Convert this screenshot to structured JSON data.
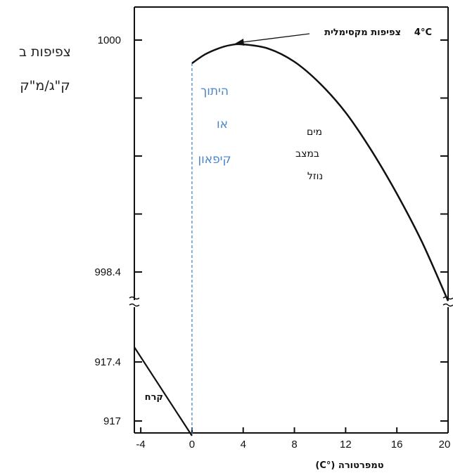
{
  "chart_data": {
    "type": "line",
    "title": "",
    "ylabel_lines": [
      "צפיפות ב",
      "ק\"ג/מ\"ק"
    ],
    "xlabel": "טמפרטורה (°C)",
    "x_ticks": [
      "-4",
      "0",
      "4",
      "8",
      "12",
      "16",
      "20"
    ],
    "y_ticks": [
      "1000",
      "998.4",
      "917.4",
      "917"
    ],
    "axis_break": "between 998.4 and 917.4",
    "xlim": [
      -4.5,
      20
    ],
    "series": [
      {
        "segment": "ice",
        "points": [
          [
            -4.5,
            917.5
          ],
          [
            0,
            916.9
          ]
        ]
      },
      {
        "segment": "water",
        "points": [
          [
            0,
            999.84
          ],
          [
            1,
            999.9
          ],
          [
            2,
            999.94
          ],
          [
            3,
            999.965
          ],
          [
            4,
            999.97
          ],
          [
            6,
            999.94
          ],
          [
            8,
            999.85
          ],
          [
            10,
            999.7
          ],
          [
            12,
            999.5
          ],
          [
            14,
            999.24
          ],
          [
            16,
            998.94
          ],
          [
            18,
            998.6
          ],
          [
            20,
            998.2
          ]
        ]
      }
    ],
    "annotations": {
      "max_density": "צפיפות מקסימלית",
      "max_temp": "4°C",
      "melt_lines": [
        "היתוך",
        "או",
        "קיפאון"
      ],
      "water_lines": [
        "מים",
        "במצב",
        "נוזל"
      ],
      "ice": "קרח"
    },
    "colors": {
      "curve": "#111111",
      "phase_line": "#4a86c8",
      "melt_text": "#4a86c8"
    },
    "grid": false
  }
}
